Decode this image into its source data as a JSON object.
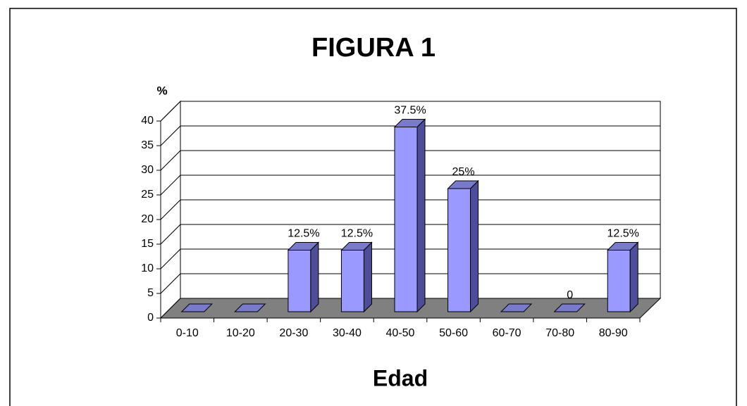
{
  "chart_data": {
    "type": "bar3d",
    "title": "FIGURA 1",
    "y_label": "%",
    "x_label": "Edad",
    "categories": [
      "0-10",
      "10-20",
      "20-30",
      "30-40",
      "40-50",
      "50-60",
      "60-70",
      "70-80",
      "80-90"
    ],
    "values": [
      0,
      0,
      12.5,
      12.5,
      37.5,
      25,
      0,
      0,
      12.5
    ],
    "value_labels": [
      null,
      null,
      "12.5%",
      "12.5%",
      "37.5%",
      "25%",
      null,
      "0",
      "12.5%"
    ],
    "color": "#9999ff",
    "ylim": [
      0,
      40
    ],
    "yticks": [
      0,
      5,
      10,
      15,
      20,
      25,
      30,
      35,
      40
    ],
    "grid": true
  }
}
